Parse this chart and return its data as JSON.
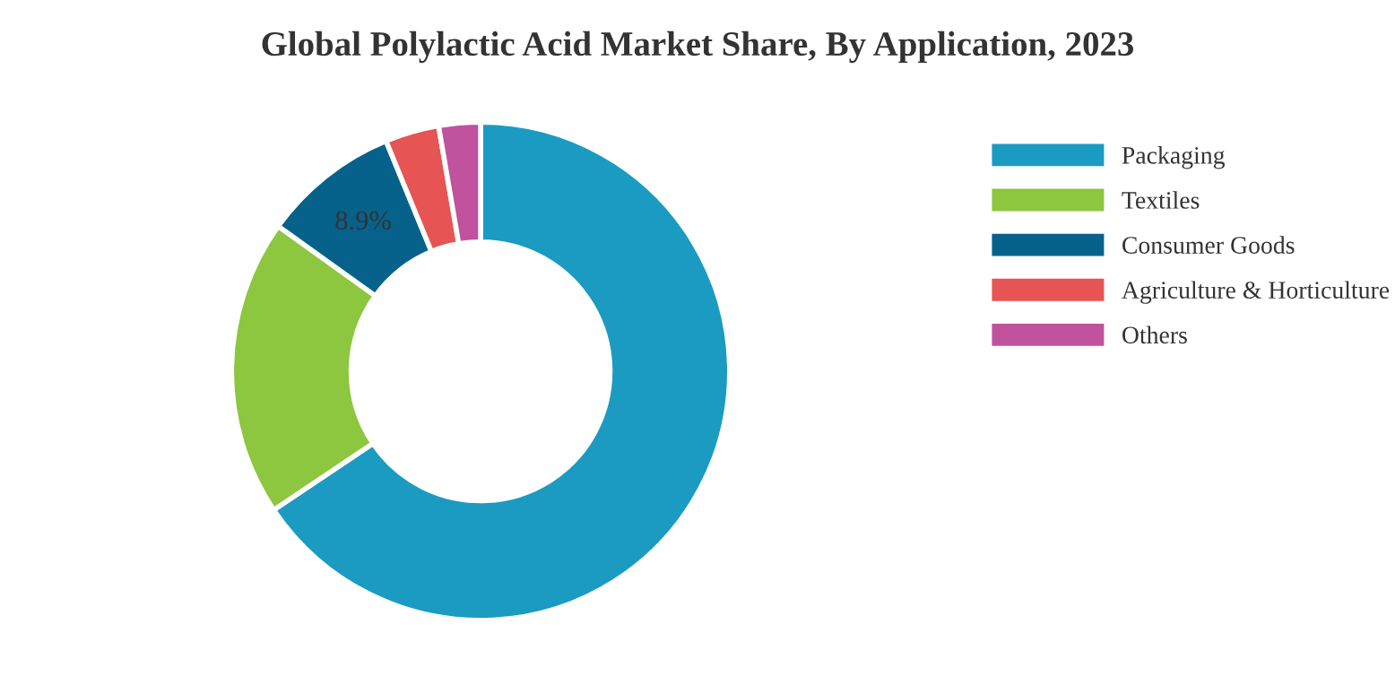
{
  "chart_data": {
    "type": "donut",
    "title": "Global Polylactic Acid Market Share, By Application, 2023",
    "categories": [
      "Packaging",
      "Textiles",
      "Consumer Goods",
      "Agriculture & Horticulture",
      "Others"
    ],
    "values": [
      65.6,
      19.3,
      8.9,
      3.5,
      2.7
    ],
    "colors": [
      "#1b9bc2",
      "#8dc63f",
      "#06628a",
      "#e65454",
      "#c0529e"
    ],
    "value_labels": [
      null,
      null,
      "8.9%",
      null,
      null
    ],
    "legend": "top right"
  }
}
